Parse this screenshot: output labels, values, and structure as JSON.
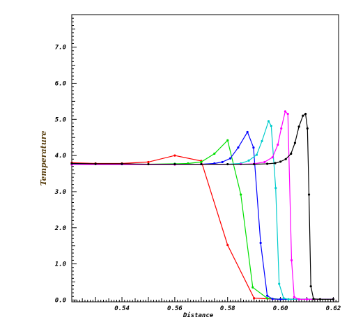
{
  "chart_data": {
    "type": "line",
    "xlabel": "Distance",
    "ylabel": "Temperature",
    "xlim": [
      0.521,
      0.622
    ],
    "ylim": [
      -0.05,
      7.9
    ],
    "xticks": [
      "0.54",
      "0.56",
      "0.58",
      "0.60",
      "0.62"
    ],
    "yticks": [
      "0.0",
      "1.0",
      "2.0",
      "3.0",
      "4.0",
      "5.0",
      "6.0",
      "7.0"
    ],
    "grid": false,
    "series": [
      {
        "color": "#ff0000",
        "points": [
          [
            0.521,
            3.8
          ],
          [
            0.53,
            3.78
          ],
          [
            0.54,
            3.78
          ],
          [
            0.55,
            3.82
          ],
          [
            0.56,
            4.0
          ],
          [
            0.57,
            3.85
          ],
          [
            0.58,
            1.52
          ],
          [
            0.59,
            0.05
          ],
          [
            0.6,
            0.02
          ],
          [
            0.61,
            0.02
          ],
          [
            0.62,
            0.02
          ]
        ]
      },
      {
        "color": "#00e000",
        "points": [
          [
            0.521,
            3.76
          ],
          [
            0.53,
            3.76
          ],
          [
            0.54,
            3.76
          ],
          [
            0.55,
            3.76
          ],
          [
            0.56,
            3.77
          ],
          [
            0.565,
            3.78
          ],
          [
            0.57,
            3.82
          ],
          [
            0.575,
            4.05
          ],
          [
            0.58,
            4.42
          ],
          [
            0.585,
            2.92
          ],
          [
            0.5895,
            0.35
          ],
          [
            0.595,
            0.05
          ],
          [
            0.6,
            0.02
          ],
          [
            0.61,
            0.02
          ],
          [
            0.62,
            0.02
          ]
        ]
      },
      {
        "color": "#0000ff",
        "points": [
          [
            0.521,
            3.76
          ],
          [
            0.54,
            3.76
          ],
          [
            0.56,
            3.76
          ],
          [
            0.57,
            3.76
          ],
          [
            0.575,
            3.78
          ],
          [
            0.578,
            3.82
          ],
          [
            0.581,
            3.92
          ],
          [
            0.584,
            4.22
          ],
          [
            0.5875,
            4.65
          ],
          [
            0.5898,
            4.22
          ],
          [
            0.5925,
            1.58
          ],
          [
            0.595,
            0.12
          ],
          [
            0.597,
            0.03
          ],
          [
            0.6,
            0.02
          ],
          [
            0.61,
            0.02
          ],
          [
            0.62,
            0.02
          ]
        ]
      },
      {
        "color": "#00cccc",
        "points": [
          [
            0.521,
            3.76
          ],
          [
            0.56,
            3.76
          ],
          [
            0.58,
            3.76
          ],
          [
            0.585,
            3.78
          ],
          [
            0.588,
            3.86
          ],
          [
            0.591,
            4.02
          ],
          [
            0.593,
            4.4
          ],
          [
            0.5955,
            4.95
          ],
          [
            0.5965,
            4.82
          ],
          [
            0.5982,
            3.1
          ],
          [
            0.5995,
            0.45
          ],
          [
            0.6012,
            0.05
          ],
          [
            0.603,
            0.02
          ],
          [
            0.61,
            0.02
          ],
          [
            0.62,
            0.02
          ]
        ]
      },
      {
        "color": "#ff00ff",
        "points": [
          [
            0.521,
            3.75
          ],
          [
            0.56,
            3.75
          ],
          [
            0.585,
            3.76
          ],
          [
            0.59,
            3.77
          ],
          [
            0.594,
            3.82
          ],
          [
            0.597,
            3.95
          ],
          [
            0.599,
            4.3
          ],
          [
            0.6003,
            4.75
          ],
          [
            0.6018,
            5.22
          ],
          [
            0.6028,
            5.15
          ],
          [
            0.6042,
            1.1
          ],
          [
            0.6052,
            0.08
          ],
          [
            0.607,
            0.02
          ],
          [
            0.61,
            0.02
          ],
          [
            0.62,
            0.02
          ]
        ]
      },
      {
        "color": "#000000",
        "points": [
          [
            0.521,
            3.78
          ],
          [
            0.53,
            3.77
          ],
          [
            0.54,
            3.77
          ],
          [
            0.55,
            3.76
          ],
          [
            0.56,
            3.76
          ],
          [
            0.57,
            3.76
          ],
          [
            0.58,
            3.76
          ],
          [
            0.59,
            3.76
          ],
          [
            0.595,
            3.77
          ],
          [
            0.598,
            3.79
          ],
          [
            0.6,
            3.83
          ],
          [
            0.602,
            3.9
          ],
          [
            0.604,
            4.05
          ],
          [
            0.6055,
            4.35
          ],
          [
            0.607,
            4.8
          ],
          [
            0.6085,
            5.1
          ],
          [
            0.6095,
            5.15
          ],
          [
            0.6102,
            4.75
          ],
          [
            0.6108,
            2.92
          ],
          [
            0.6115,
            0.38
          ],
          [
            0.6125,
            0.03
          ],
          [
            0.615,
            0.02
          ],
          [
            0.62,
            0.02
          ]
        ]
      }
    ]
  }
}
